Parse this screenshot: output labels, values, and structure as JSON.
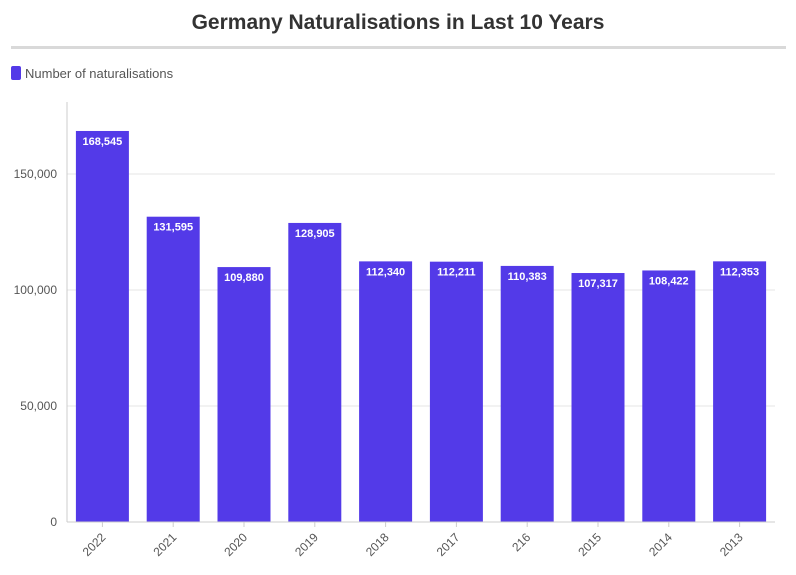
{
  "chart_data": {
    "type": "bar",
    "title": "Germany Naturalisations in Last 10 Years",
    "categories": [
      "2022",
      "2021",
      "2020",
      "2019",
      "2018",
      "2017",
      "216",
      "2015",
      "2014",
      "2013"
    ],
    "series": [
      {
        "name": "Number of naturalisations",
        "values": [
          168545,
          131595,
          109880,
          128905,
          112340,
          112211,
          110383,
          107317,
          108422,
          112353
        ],
        "labels": [
          "168,545",
          "131,595",
          "109,880",
          "128,905",
          "112,340",
          "112,211",
          "110,383",
          "107,317",
          "108,422",
          "112,353"
        ]
      }
    ],
    "y_ticks": [
      0,
      50000,
      100000,
      150000
    ],
    "y_tick_labels": [
      "0",
      "50,000",
      "100,000",
      "150,000"
    ],
    "ylim": [
      0,
      180000
    ],
    "legend_position": "top-left",
    "grid": true,
    "colors": {
      "bar": "#533ae8",
      "grid": "#e6e6e6",
      "axis": "#cccccc"
    }
  }
}
